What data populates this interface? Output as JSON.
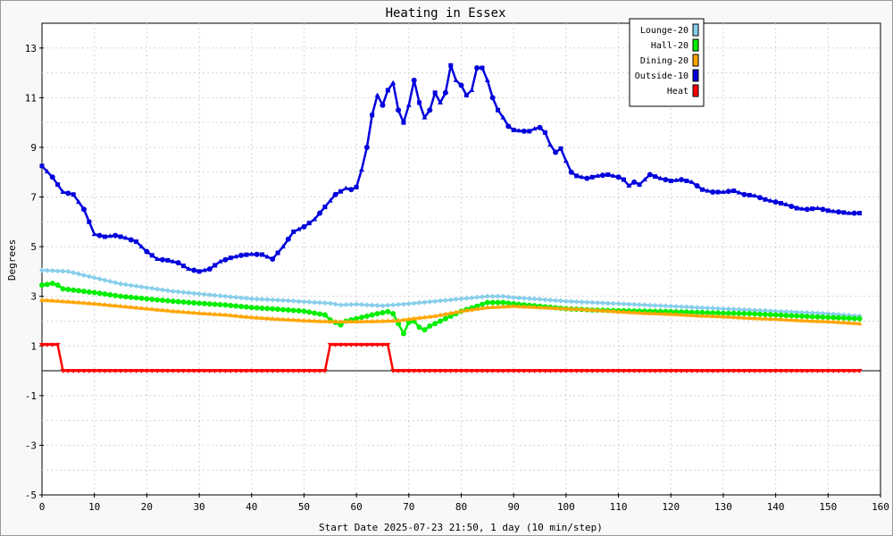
{
  "chart_data": {
    "type": "line",
    "title": "Heating in Essex",
    "xlabel": "Start Date 2025-07-23 21:50, 1 day (10 min/step)",
    "ylabel": "Degrees",
    "xlim": [
      0,
      160
    ],
    "ylim": [
      -5,
      14
    ],
    "xticks": [
      0,
      10,
      20,
      30,
      40,
      50,
      60,
      70,
      80,
      90,
      100,
      110,
      120,
      130,
      140,
      150,
      160
    ],
    "yticks": [
      13,
      11,
      9,
      7,
      5,
      3,
      1,
      -1,
      -3,
      -5
    ],
    "grid": true,
    "legend_position": "top-right",
    "series": [
      {
        "name": "Lounge-20",
        "color": "#87ceeb",
        "marker": "diamond",
        "points": [
          [
            0,
            4.05
          ],
          [
            5,
            4.0
          ],
          [
            10,
            3.75
          ],
          [
            15,
            3.5
          ],
          [
            20,
            3.35
          ],
          [
            25,
            3.2
          ],
          [
            30,
            3.1
          ],
          [
            35,
            3.0
          ],
          [
            40,
            2.9
          ],
          [
            45,
            2.85
          ],
          [
            50,
            2.78
          ],
          [
            55,
            2.72
          ],
          [
            57,
            2.65
          ],
          [
            60,
            2.68
          ],
          [
            65,
            2.62
          ],
          [
            70,
            2.7
          ],
          [
            75,
            2.8
          ],
          [
            80,
            2.9
          ],
          [
            85,
            3.0
          ],
          [
            88,
            3.0
          ],
          [
            90,
            2.95
          ],
          [
            95,
            2.88
          ],
          [
            100,
            2.8
          ],
          [
            105,
            2.75
          ],
          [
            110,
            2.7
          ],
          [
            115,
            2.65
          ],
          [
            120,
            2.6
          ],
          [
            125,
            2.55
          ],
          [
            130,
            2.5
          ],
          [
            135,
            2.45
          ],
          [
            140,
            2.4
          ],
          [
            145,
            2.35
          ],
          [
            150,
            2.3
          ],
          [
            156,
            2.2
          ]
        ]
      },
      {
        "name": "Hall-20",
        "color": "#00ee00",
        "marker": "circle",
        "points": [
          [
            0,
            3.45
          ],
          [
            1,
            3.48
          ],
          [
            2,
            3.52
          ],
          [
            3,
            3.45
          ],
          [
            4,
            3.3
          ],
          [
            10,
            3.15
          ],
          [
            15,
            3.0
          ],
          [
            20,
            2.9
          ],
          [
            25,
            2.8
          ],
          [
            30,
            2.72
          ],
          [
            35,
            2.65
          ],
          [
            40,
            2.55
          ],
          [
            45,
            2.48
          ],
          [
            50,
            2.4
          ],
          [
            54,
            2.25
          ],
          [
            55,
            2.05
          ],
          [
            57,
            1.85
          ],
          [
            58,
            2.0
          ],
          [
            60,
            2.1
          ],
          [
            62,
            2.2
          ],
          [
            64,
            2.3
          ],
          [
            66,
            2.38
          ],
          [
            67,
            2.3
          ],
          [
            68,
            1.9
          ],
          [
            69,
            1.5
          ],
          [
            70,
            1.95
          ],
          [
            71,
            2.0
          ],
          [
            72,
            1.75
          ],
          [
            73,
            1.65
          ],
          [
            74,
            1.8
          ],
          [
            76,
            2.0
          ],
          [
            78,
            2.2
          ],
          [
            80,
            2.4
          ],
          [
            83,
            2.6
          ],
          [
            85,
            2.75
          ],
          [
            88,
            2.75
          ],
          [
            90,
            2.7
          ],
          [
            95,
            2.6
          ],
          [
            100,
            2.5
          ],
          [
            105,
            2.45
          ],
          [
            110,
            2.42
          ],
          [
            115,
            2.4
          ],
          [
            120,
            2.38
          ],
          [
            125,
            2.35
          ],
          [
            130,
            2.32
          ],
          [
            135,
            2.3
          ],
          [
            140,
            2.25
          ],
          [
            145,
            2.2
          ],
          [
            150,
            2.15
          ],
          [
            156,
            2.1
          ]
        ]
      },
      {
        "name": "Dining-20",
        "color": "#ffa500",
        "marker": "triangle-up",
        "points": [
          [
            0,
            2.85
          ],
          [
            5,
            2.78
          ],
          [
            10,
            2.7
          ],
          [
            15,
            2.6
          ],
          [
            20,
            2.5
          ],
          [
            25,
            2.4
          ],
          [
            30,
            2.32
          ],
          [
            35,
            2.25
          ],
          [
            40,
            2.15
          ],
          [
            45,
            2.08
          ],
          [
            50,
            2.02
          ],
          [
            55,
            1.98
          ],
          [
            60,
            1.98
          ],
          [
            65,
            2.0
          ],
          [
            68,
            2.02
          ],
          [
            70,
            2.08
          ],
          [
            75,
            2.2
          ],
          [
            80,
            2.4
          ],
          [
            85,
            2.55
          ],
          [
            90,
            2.6
          ],
          [
            95,
            2.55
          ],
          [
            100,
            2.5
          ],
          [
            105,
            2.45
          ],
          [
            110,
            2.38
          ],
          [
            115,
            2.32
          ],
          [
            120,
            2.28
          ],
          [
            125,
            2.22
          ],
          [
            130,
            2.18
          ],
          [
            135,
            2.12
          ],
          [
            140,
            2.08
          ],
          [
            145,
            2.02
          ],
          [
            150,
            1.98
          ],
          [
            156,
            1.9
          ]
        ]
      },
      {
        "name": "Outside-10",
        "color": "#0000dd",
        "marker": "mixed",
        "points": [
          [
            0,
            8.25
          ],
          [
            2,
            7.8
          ],
          [
            4,
            7.2
          ],
          [
            6,
            7.1
          ],
          [
            8,
            6.5
          ],
          [
            10,
            5.5
          ],
          [
            12,
            5.4
          ],
          [
            14,
            5.45
          ],
          [
            16,
            5.35
          ],
          [
            18,
            5.2
          ],
          [
            20,
            4.8
          ],
          [
            22,
            4.5
          ],
          [
            24,
            4.45
          ],
          [
            26,
            4.35
          ],
          [
            28,
            4.1
          ],
          [
            30,
            4.0
          ],
          [
            32,
            4.1
          ],
          [
            34,
            4.4
          ],
          [
            36,
            4.55
          ],
          [
            38,
            4.65
          ],
          [
            40,
            4.7
          ],
          [
            42,
            4.68
          ],
          [
            44,
            4.5
          ],
          [
            46,
            5.0
          ],
          [
            48,
            5.6
          ],
          [
            50,
            5.8
          ],
          [
            52,
            6.1
          ],
          [
            54,
            6.6
          ],
          [
            56,
            7.1
          ],
          [
            58,
            7.35
          ],
          [
            59,
            7.3
          ],
          [
            60,
            7.4
          ],
          [
            61,
            8.1
          ],
          [
            62,
            9.0
          ],
          [
            63,
            10.3
          ],
          [
            64,
            11.1
          ],
          [
            65,
            10.7
          ],
          [
            66,
            11.3
          ],
          [
            67,
            11.6
          ],
          [
            68,
            10.5
          ],
          [
            69,
            10.0
          ],
          [
            70,
            10.7
          ],
          [
            71,
            11.7
          ],
          [
            72,
            10.8
          ],
          [
            73,
            10.2
          ],
          [
            74,
            10.5
          ],
          [
            75,
            11.2
          ],
          [
            76,
            10.8
          ],
          [
            77,
            11.2
          ],
          [
            78,
            12.3
          ],
          [
            79,
            11.7
          ],
          [
            80,
            11.5
          ],
          [
            81,
            11.1
          ],
          [
            82,
            11.3
          ],
          [
            83,
            12.2
          ],
          [
            84,
            12.2
          ],
          [
            85,
            11.7
          ],
          [
            86,
            11.0
          ],
          [
            87,
            10.5
          ],
          [
            88,
            10.2
          ],
          [
            89,
            9.85
          ],
          [
            90,
            9.7
          ],
          [
            92,
            9.65
          ],
          [
            93,
            9.65
          ],
          [
            94,
            9.75
          ],
          [
            95,
            9.8
          ],
          [
            96,
            9.6
          ],
          [
            97,
            9.1
          ],
          [
            98,
            8.8
          ],
          [
            99,
            8.95
          ],
          [
            100,
            8.45
          ],
          [
            101,
            8.0
          ],
          [
            102,
            7.85
          ],
          [
            104,
            7.75
          ],
          [
            106,
            7.85
          ],
          [
            108,
            7.9
          ],
          [
            110,
            7.8
          ],
          [
            111,
            7.7
          ],
          [
            112,
            7.45
          ],
          [
            113,
            7.6
          ],
          [
            114,
            7.5
          ],
          [
            116,
            7.9
          ],
          [
            118,
            7.75
          ],
          [
            120,
            7.65
          ],
          [
            122,
            7.7
          ],
          [
            124,
            7.6
          ],
          [
            126,
            7.3
          ],
          [
            128,
            7.2
          ],
          [
            130,
            7.2
          ],
          [
            132,
            7.25
          ],
          [
            134,
            7.1
          ],
          [
            136,
            7.05
          ],
          [
            138,
            6.9
          ],
          [
            140,
            6.8
          ],
          [
            142,
            6.7
          ],
          [
            144,
            6.55
          ],
          [
            146,
            6.5
          ],
          [
            148,
            6.55
          ],
          [
            150,
            6.45
          ],
          [
            152,
            6.4
          ],
          [
            154,
            6.35
          ],
          [
            156,
            6.35
          ]
        ]
      },
      {
        "name": "Heat",
        "color": "#ff0000",
        "marker": "triangle-down",
        "points": [
          [
            0,
            1.05
          ],
          [
            3,
            1.05
          ],
          [
            4,
            0.0
          ],
          [
            54,
            0.0
          ],
          [
            55,
            1.05
          ],
          [
            66,
            1.05
          ],
          [
            67,
            0.0
          ],
          [
            156,
            0.0
          ]
        ]
      }
    ]
  }
}
